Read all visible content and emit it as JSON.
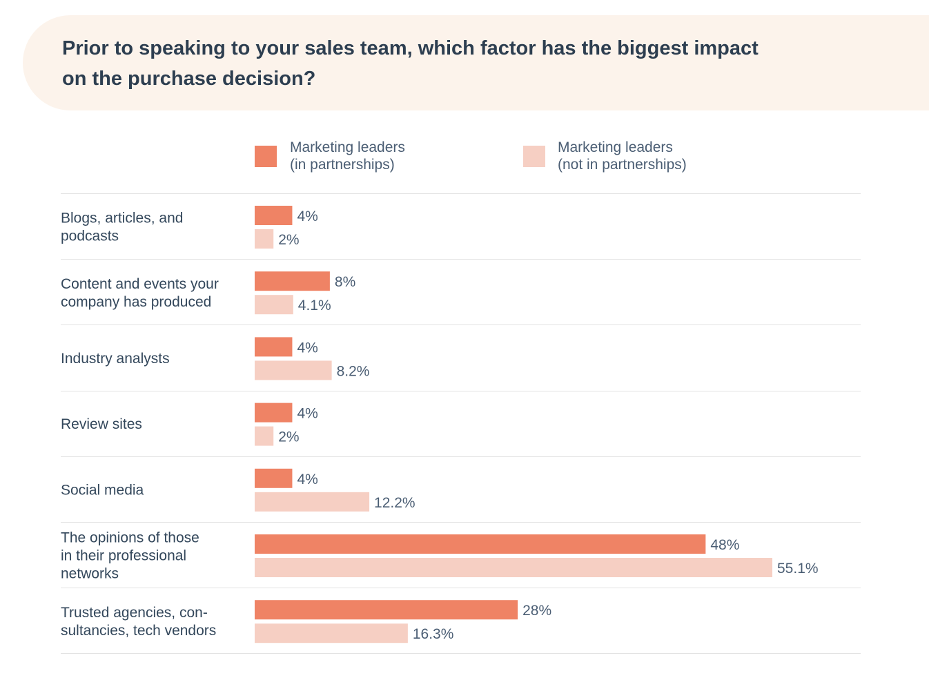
{
  "header": {
    "title_line1": "Prior to speaking to your sales team, which factor has the biggest impact",
    "title_line2": "on the purchase decision?"
  },
  "colors": {
    "banner": "#fcf3eb",
    "series_in": "#ef8365",
    "series_not": "#f6cfc3",
    "gridline": "#e3e3e3",
    "text": "#33475b"
  },
  "chart_data": {
    "type": "bar",
    "orientation": "horizontal",
    "title": "Prior to speaking to your sales team, which factor has the biggest impact on the purchase decision?",
    "categories": [
      [
        "Blogs, articles, and",
        "podcasts"
      ],
      [
        "Content and events your",
        "company has produced"
      ],
      [
        "Industry analysts"
      ],
      [
        "Review sites"
      ],
      [
        "Social media"
      ],
      [
        "The opinions of those",
        "in their professional",
        "networks"
      ],
      [
        "Trusted agencies, con-",
        "sultancies, tech vendors"
      ]
    ],
    "series": [
      {
        "name": "Marketing leaders\n(in partnerships)",
        "color": "#ef8365",
        "values": [
          4,
          8,
          4,
          4,
          4,
          48,
          28
        ],
        "labels": [
          "4%",
          "8%",
          "4%",
          "4%",
          "4%",
          "48%",
          "28%"
        ]
      },
      {
        "name": "Marketing leaders\n(not in partnerships)",
        "color": "#f6cfc3",
        "values": [
          2,
          4.1,
          8.2,
          2,
          12.2,
          55.1,
          16.3
        ],
        "labels": [
          "2%",
          "4.1%",
          "8.2%",
          "2%",
          "12.2%",
          "55.1%",
          "16.3%"
        ]
      }
    ],
    "xlim": [
      0,
      55.1
    ],
    "grid": false,
    "legend": "top"
  }
}
